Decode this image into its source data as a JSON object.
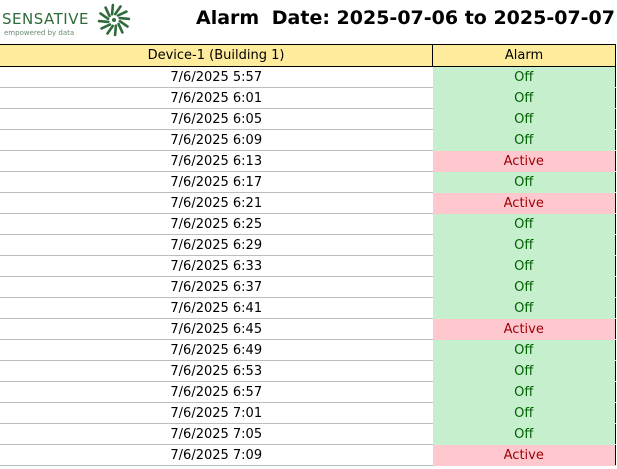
{
  "header": {
    "logo_text": "SENSATIVE",
    "logo_tagline": "empowered by data",
    "title": "Alarm",
    "date_range": "Date: 2025-07-06 to 2025-07-07"
  },
  "table": {
    "columns": [
      "Device-1 (Building 1)",
      "Alarm"
    ],
    "rows": [
      {
        "time": "7/6/2025 5:57",
        "alarm": "Off"
      },
      {
        "time": "7/6/2025 6:01",
        "alarm": "Off"
      },
      {
        "time": "7/6/2025 6:05",
        "alarm": "Off"
      },
      {
        "time": "7/6/2025 6:09",
        "alarm": "Off"
      },
      {
        "time": "7/6/2025 6:13",
        "alarm": "Active"
      },
      {
        "time": "7/6/2025 6:17",
        "alarm": "Off"
      },
      {
        "time": "7/6/2025 6:21",
        "alarm": "Active"
      },
      {
        "time": "7/6/2025 6:25",
        "alarm": "Off"
      },
      {
        "time": "7/6/2025 6:29",
        "alarm": "Off"
      },
      {
        "time": "7/6/2025 6:33",
        "alarm": "Off"
      },
      {
        "time": "7/6/2025 6:37",
        "alarm": "Off"
      },
      {
        "time": "7/6/2025 6:41",
        "alarm": "Off"
      },
      {
        "time": "7/6/2025 6:45",
        "alarm": "Active"
      },
      {
        "time": "7/6/2025 6:49",
        "alarm": "Off"
      },
      {
        "time": "7/6/2025 6:53",
        "alarm": "Off"
      },
      {
        "time": "7/6/2025 6:57",
        "alarm": "Off"
      },
      {
        "time": "7/6/2025 7:01",
        "alarm": "Off"
      },
      {
        "time": "7/6/2025 7:05",
        "alarm": "Off"
      },
      {
        "time": "7/6/2025 7:09",
        "alarm": "Active"
      }
    ]
  },
  "colors": {
    "header_bg": "#ffeb9c",
    "off_bg": "#c6efce",
    "off_text": "#006100",
    "active_bg": "#ffc7ce",
    "active_text": "#9c0006",
    "brand": "#2f6b3a"
  }
}
